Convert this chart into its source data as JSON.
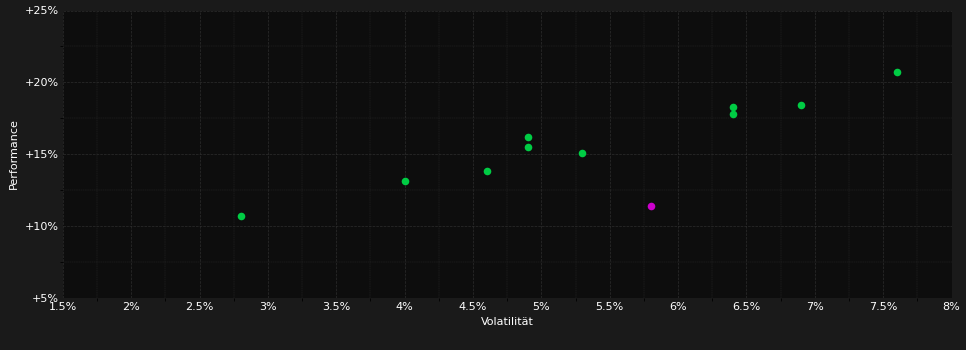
{
  "xlabel": "Volatilität",
  "ylabel": "Performance",
  "background_color": "#1a1a1a",
  "plot_bg_color": "#0d0d0d",
  "grid_color": "#2d2d2d",
  "text_color": "#ffffff",
  "xlim": [
    0.015,
    0.08
  ],
  "ylim": [
    0.05,
    0.25
  ],
  "xticks": [
    0.015,
    0.02,
    0.025,
    0.03,
    0.035,
    0.04,
    0.045,
    0.05,
    0.055,
    0.06,
    0.065,
    0.07,
    0.075,
    0.08
  ],
  "yticks": [
    0.05,
    0.1,
    0.15,
    0.2,
    0.25
  ],
  "green_points": [
    [
      0.028,
      0.107
    ],
    [
      0.04,
      0.131
    ],
    [
      0.046,
      0.138
    ],
    [
      0.049,
      0.155
    ],
    [
      0.049,
      0.162
    ],
    [
      0.053,
      0.151
    ],
    [
      0.064,
      0.178
    ],
    [
      0.064,
      0.183
    ],
    [
      0.069,
      0.184
    ],
    [
      0.076,
      0.207
    ]
  ],
  "magenta_points": [
    [
      0.058,
      0.114
    ]
  ],
  "point_size": 30,
  "green_color": "#00cc44",
  "magenta_color": "#cc00cc",
  "xlabel_fontsize": 8,
  "ylabel_fontsize": 8,
  "tick_labelsize": 8
}
